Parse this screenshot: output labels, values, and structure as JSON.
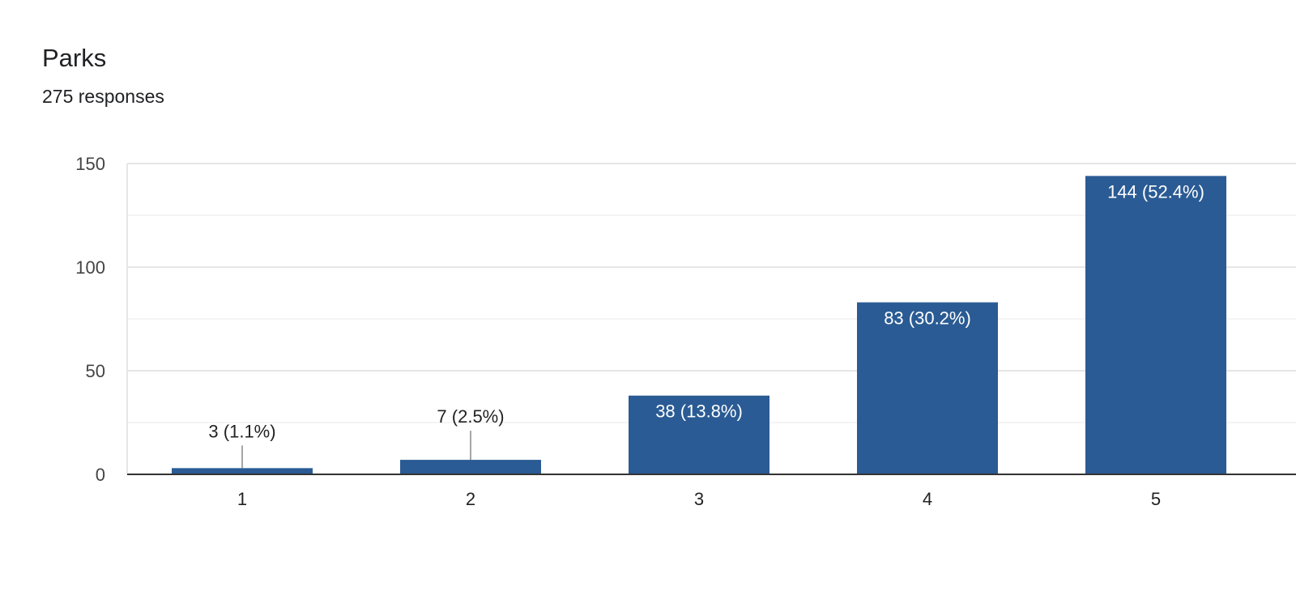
{
  "header": {
    "title": "Parks",
    "subtitle": "275 responses"
  },
  "colors": {
    "bar": "#2a5b94",
    "grid_major": "#e6e6e6",
    "grid_minor": "#f1f1f1",
    "baseline": "#333333",
    "leader": "#888888"
  },
  "chart_data": {
    "type": "bar",
    "title": "Parks",
    "subtitle": "275 responses",
    "categories": [
      "1",
      "2",
      "3",
      "4",
      "5"
    ],
    "values": [
      3,
      7,
      38,
      83,
      144
    ],
    "data_labels": [
      "3 (1.1%)",
      "7 (2.5%)",
      "38 (13.8%)",
      "83 (30.2%)",
      "144 (52.4%)"
    ],
    "ylim": [
      0,
      150
    ],
    "yticks": [
      0,
      50,
      100,
      150
    ],
    "grid": true,
    "legend": "none"
  }
}
